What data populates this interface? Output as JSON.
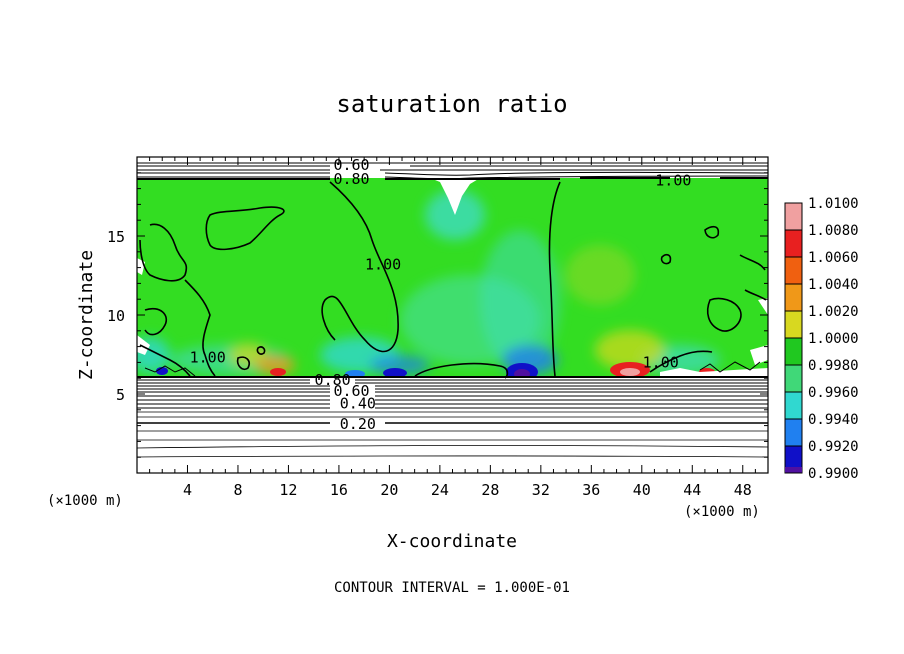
{
  "chart_data": {
    "type": "heatmap",
    "title": "saturation ratio",
    "xlabel": "X-coordinate",
    "ylabel": "Z-coordinate",
    "x_unit": "(×1000 m)",
    "z_unit": "(×1000 m)",
    "footer": "CONTOUR INTERVAL = 1.000E-01",
    "xlim": [
      0,
      50
    ],
    "ylim": [
      0,
      20
    ],
    "x_ticks": [
      "4",
      "8",
      "12",
      "16",
      "20",
      "24",
      "28",
      "32",
      "36",
      "40",
      "44",
      "48"
    ],
    "x_tick_values": [
      4,
      8,
      12,
      16,
      20,
      24,
      28,
      32,
      36,
      40,
      44,
      48
    ],
    "y_ticks": [
      "5",
      "10",
      "15"
    ],
    "y_tick_values": [
      5,
      10,
      15
    ],
    "colorbar": {
      "labels": [
        "1.0100",
        "1.0080",
        "1.0060",
        "1.0040",
        "1.0020",
        "1.0000",
        "0.9980",
        "0.9960",
        "0.9940",
        "0.9920",
        "0.9900"
      ],
      "levels": [
        1.01,
        1.008,
        1.006,
        1.004,
        1.002,
        1.0,
        0.998,
        0.996,
        0.994,
        0.992,
        0.99
      ],
      "colors": [
        "#f0a0a0",
        "#e82020",
        "#f06010",
        "#f09818",
        "#d8d820",
        "#20c820",
        "#40d878",
        "#30d8d0",
        "#2080f0",
        "#1010c8",
        "#5010a0"
      ]
    },
    "background_color": "#33dd22",
    "contour_labels": [
      {
        "text": "0.60",
        "x": 17.0,
        "z": 19.5
      },
      {
        "text": "0.80",
        "x": 17.0,
        "z": 18.6
      },
      {
        "text": "1.00",
        "x": 42.5,
        "z": 18.5
      },
      {
        "text": "1.00",
        "x": 19.5,
        "z": 13.2
      },
      {
        "text": "1.00",
        "x": 5.6,
        "z": 7.3
      },
      {
        "text": "1.00",
        "x": 41.5,
        "z": 7.0
      },
      {
        "text": "0.80",
        "x": 15.5,
        "z": 5.9
      },
      {
        "text": "0.60",
        "x": 17.0,
        "z": 5.2
      },
      {
        "text": "0.40",
        "x": 17.5,
        "z": 4.4
      },
      {
        "text": "0.20",
        "x": 17.5,
        "z": 3.1
      }
    ],
    "contour_lines_z": [
      0.2,
      0.4,
      0.6,
      0.8
    ]
  }
}
